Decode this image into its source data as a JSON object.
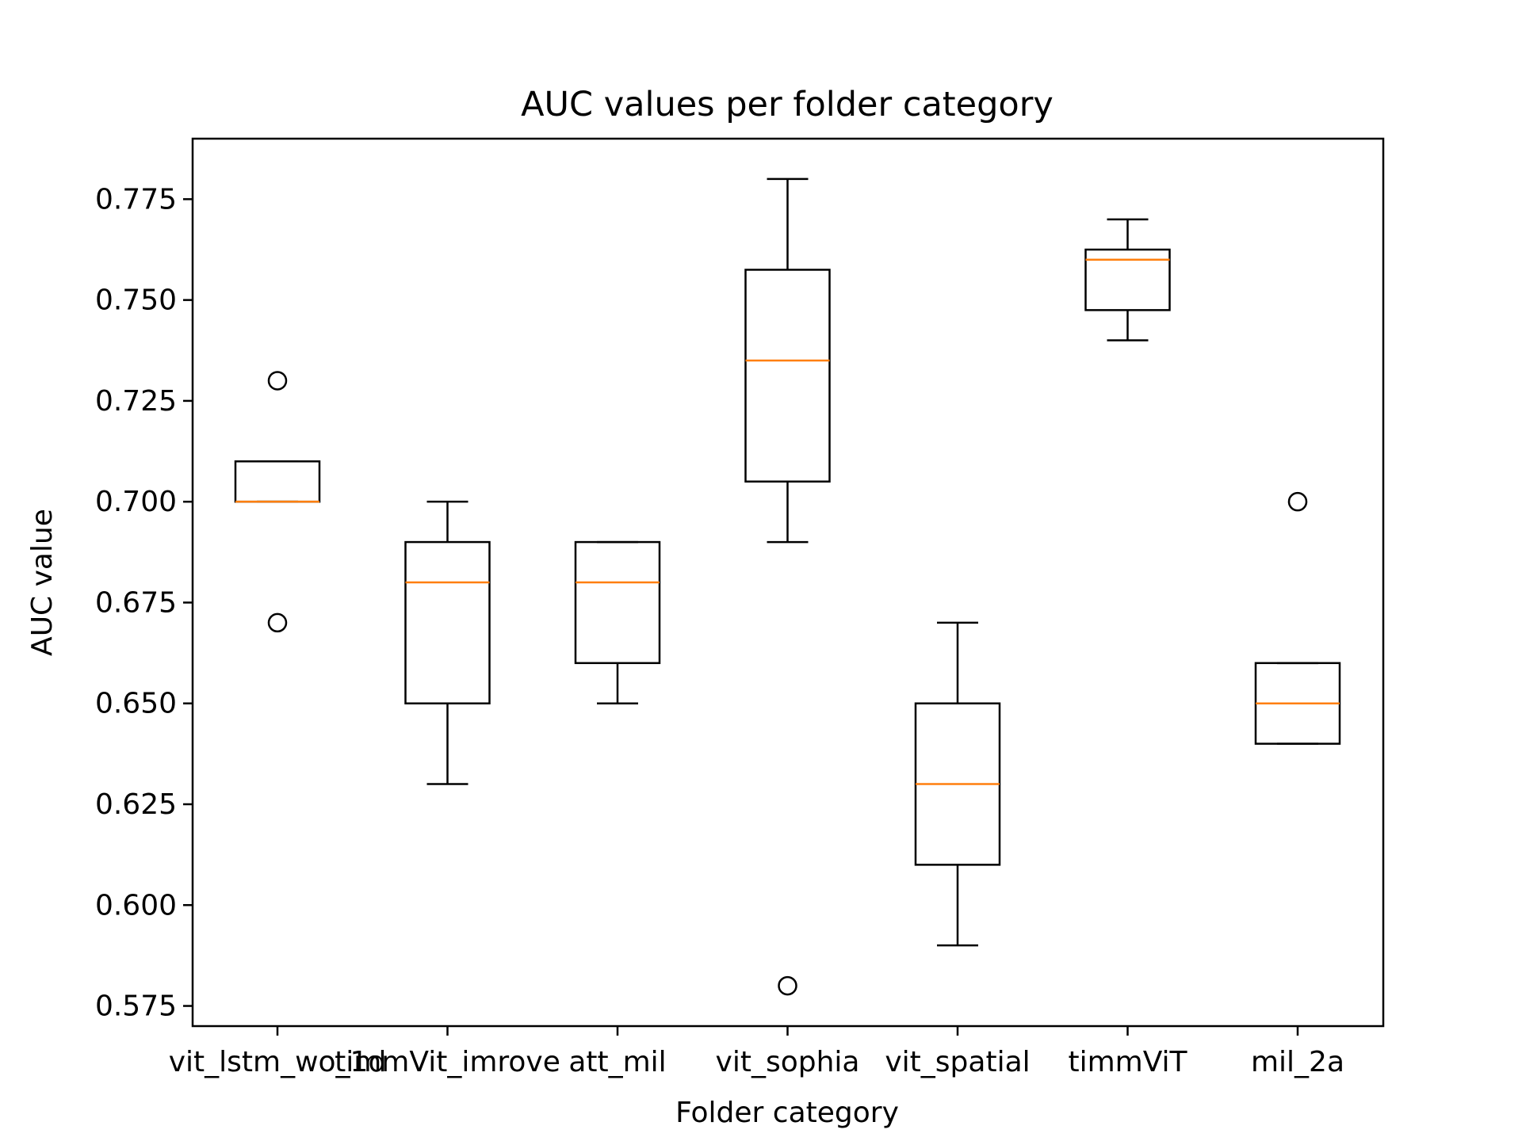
{
  "chart_data": {
    "type": "box",
    "title": "AUC values per folder category",
    "xlabel": "Folder category",
    "ylabel": "AUC value",
    "ylim": [
      0.57,
      0.79
    ],
    "yticks": [
      "0.575",
      "0.600",
      "0.625",
      "0.650",
      "0.675",
      "0.700",
      "0.725",
      "0.750",
      "0.775"
    ],
    "categories": [
      "vit_lstm_wo_1d",
      "timmVit_imrove",
      "att_mil",
      "vit_sophia",
      "vit_spatial",
      "timmViT",
      "mil_2a"
    ],
    "boxes": [
      {
        "category": "vit_lstm_wo_1d",
        "whisker_low": 0.7,
        "q1": 0.7,
        "median": 0.7,
        "q3": 0.71,
        "whisker_high": 0.71,
        "outliers": [
          0.73,
          0.67
        ]
      },
      {
        "category": "timmVit_imrove",
        "whisker_low": 0.63,
        "q1": 0.65,
        "median": 0.68,
        "q3": 0.69,
        "whisker_high": 0.7,
        "outliers": []
      },
      {
        "category": "att_mil",
        "whisker_low": 0.65,
        "q1": 0.66,
        "median": 0.68,
        "q3": 0.69,
        "whisker_high": 0.69,
        "outliers": []
      },
      {
        "category": "vit_sophia",
        "whisker_low": 0.69,
        "q1": 0.705,
        "median": 0.735,
        "q3": 0.7575,
        "whisker_high": 0.78,
        "outliers": [
          0.58
        ]
      },
      {
        "category": "vit_spatial",
        "whisker_low": 0.59,
        "q1": 0.61,
        "median": 0.63,
        "q3": 0.65,
        "whisker_high": 0.67,
        "outliers": []
      },
      {
        "category": "timmViT",
        "whisker_low": 0.74,
        "q1": 0.7475,
        "median": 0.76,
        "q3": 0.7625,
        "whisker_high": 0.77,
        "outliers": []
      },
      {
        "category": "mil_2a",
        "whisker_low": 0.64,
        "q1": 0.64,
        "median": 0.65,
        "q3": 0.66,
        "whisker_high": 0.66,
        "outliers": [
          0.7
        ]
      }
    ],
    "colors": {
      "box": "#000000",
      "median": "#ff7f0e",
      "outlier": "#000000"
    },
    "grid": false,
    "legend": "none"
  }
}
